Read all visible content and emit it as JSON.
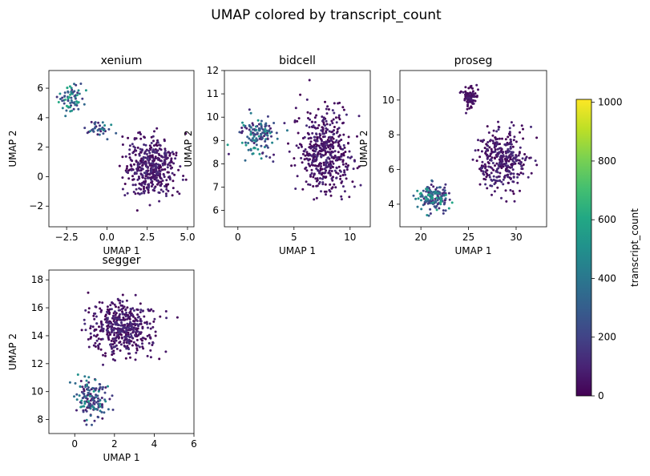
{
  "figure": {
    "title": "UMAP colored by transcript_count"
  },
  "colorbar": {
    "label": "transcript_count",
    "min": 0,
    "max": 1010,
    "ticks": [
      0,
      200,
      400,
      600,
      800,
      1000
    ],
    "colormap": "viridis"
  },
  "chart_data": [
    {
      "type": "scatter",
      "title": "xenium",
      "xlabel": "UMAP 1",
      "ylabel": "UMAP 2",
      "xlim": [
        -3.6,
        5.4
      ],
      "ylim": [
        -3.4,
        7.2
      ],
      "xticks": [
        -2.5,
        0.0,
        2.5,
        5.0
      ],
      "yticks": [
        -2,
        0,
        2,
        4,
        6
      ],
      "tick_decimals": 1,
      "clusters": [
        {
          "cx": -2.3,
          "cy": 5.3,
          "sx": 0.7,
          "sy": 0.7,
          "n": 70,
          "value_range": [
            150,
            650
          ]
        },
        {
          "cx": -0.6,
          "cy": 3.3,
          "sx": 0.7,
          "sy": 0.5,
          "n": 40,
          "value_range": [
            60,
            500
          ]
        },
        {
          "cx": 2.8,
          "cy": 0.6,
          "sx": 1.25,
          "sy": 1.55,
          "n": 440,
          "value_range": [
            0,
            140
          ]
        }
      ]
    },
    {
      "type": "scatter",
      "title": "bidcell",
      "xlabel": "UMAP 1",
      "ylabel": "UMAP 2",
      "xlim": [
        -1.2,
        11.8
      ],
      "ylim": [
        5.3,
        12.0
      ],
      "xticks": [
        0,
        5,
        10
      ],
      "yticks": [
        6,
        7,
        8,
        9,
        10,
        11,
        12
      ],
      "tick_decimals": 0,
      "clusters": [
        {
          "cx": 1.8,
          "cy": 9.2,
          "sx": 1.3,
          "sy": 0.65,
          "n": 140,
          "value_range": [
            80,
            560
          ]
        },
        {
          "cx": 7.7,
          "cy": 8.5,
          "sx": 1.9,
          "sy": 1.45,
          "n": 470,
          "value_range": [
            0,
            140
          ]
        }
      ]
    },
    {
      "type": "scatter",
      "title": "proseg",
      "xlabel": "UMAP 1",
      "ylabel": "UMAP 2",
      "xlim": [
        17.8,
        33.2
      ],
      "ylim": [
        2.7,
        11.7
      ],
      "xticks": [
        20,
        25,
        30
      ],
      "yticks": [
        4,
        6,
        8,
        10
      ],
      "tick_decimals": 0,
      "clusters": [
        {
          "cx": 21.5,
          "cy": 4.4,
          "sx": 1.4,
          "sy": 0.6,
          "n": 160,
          "value_range": [
            80,
            620
          ]
        },
        {
          "cx": 25.2,
          "cy": 10.2,
          "sx": 0.7,
          "sy": 0.5,
          "n": 80,
          "value_range": [
            0,
            90
          ]
        },
        {
          "cx": 28.5,
          "cy": 6.6,
          "sx": 2.0,
          "sy": 1.4,
          "n": 360,
          "value_range": [
            0,
            140
          ]
        }
      ]
    },
    {
      "type": "scatter",
      "title": "segger",
      "xlabel": "UMAP 1",
      "ylabel": "UMAP 2",
      "xlim": [
        -1.3,
        6.0
      ],
      "ylim": [
        7.0,
        18.7
      ],
      "xticks": [
        0,
        2,
        4,
        6
      ],
      "yticks": [
        8,
        10,
        12,
        14,
        16,
        18
      ],
      "tick_decimals": 0,
      "clusters": [
        {
          "cx": 0.9,
          "cy": 9.6,
          "sx": 0.65,
          "sy": 1.2,
          "n": 150,
          "value_range": [
            40,
            560
          ]
        },
        {
          "cx": 2.4,
          "cy": 14.6,
          "sx": 1.35,
          "sy": 1.6,
          "n": 470,
          "value_range": [
            0,
            140
          ]
        }
      ]
    }
  ]
}
